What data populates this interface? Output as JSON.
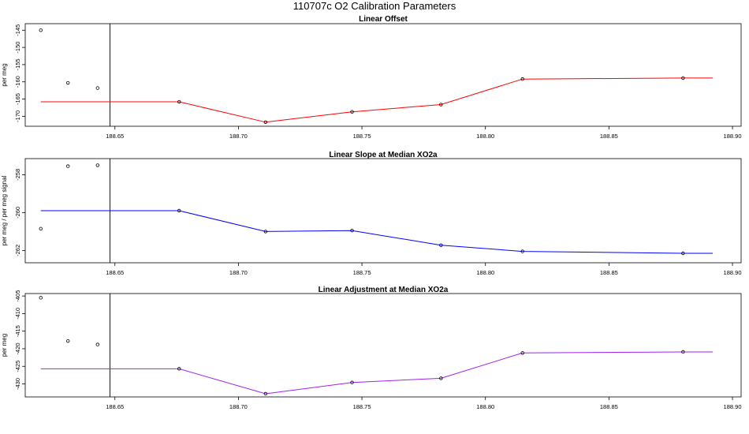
{
  "title": "110707c   O2 Calibration Parameters",
  "chart_data": [
    {
      "type": "line",
      "title": "Linear Offset",
      "ylabel": "per meg",
      "xlim": [
        188.6137,
        188.9035
      ],
      "ylim": [
        -172.9,
        -143.1
      ],
      "xticks": [
        "188.65",
        "188.70",
        "188.75",
        "188.80",
        "188.85",
        "188.90"
      ],
      "yticks": [
        "-145",
        "-150",
        "-155",
        "-160",
        "-165",
        "-170"
      ],
      "vline_x": 188.648,
      "points": {
        "x": [
          188.62,
          188.631,
          188.643
        ],
        "y": [
          -145.0,
          -160.3,
          -161.8
        ]
      },
      "series": [
        {
          "color": "#ff0000",
          "x": [
            188.62,
            188.676,
            188.711,
            188.746,
            188.782,
            188.815,
            188.88,
            188.892
          ],
          "y": [
            -165.8,
            -165.8,
            -171.7,
            -168.7,
            -166.6,
            -159.2,
            -158.9,
            -158.9
          ],
          "markers": [
            false,
            true,
            true,
            true,
            true,
            true,
            true,
            false
          ]
        }
      ]
    },
    {
      "type": "line",
      "title": "Linear Slope at Median XO2a",
      "ylabel": "per meg / per meg signal",
      "xlim": [
        188.6137,
        188.9035
      ],
      "ylim": [
        -262.65,
        -257.15
      ],
      "xticks": [
        "188.65",
        "188.70",
        "188.75",
        "188.80",
        "188.85",
        "188.90"
      ],
      "yticks": [
        "-258",
        "-260",
        "-262"
      ],
      "vline_x": 188.648,
      "points": {
        "x": [
          188.62,
          188.631,
          188.643
        ],
        "y": [
          -260.85,
          -257.55,
          -257.5
        ]
      },
      "series": [
        {
          "color": "#0000ff",
          "x": [
            188.62,
            188.676,
            188.711,
            188.746,
            188.782,
            188.815,
            188.88,
            188.892
          ],
          "y": [
            -259.9,
            -259.9,
            -261.0,
            -260.95,
            -261.72,
            -262.05,
            -262.15,
            -262.15
          ],
          "markers": [
            false,
            true,
            true,
            true,
            true,
            true,
            true,
            false
          ]
        }
      ]
    },
    {
      "type": "line",
      "title": "Linear Adjustment at Median XO2a",
      "ylabel": "per meg",
      "xlim": [
        188.6137,
        188.9035
      ],
      "ylim": [
        -433.7,
        -404.3
      ],
      "xticks": [
        "188.65",
        "188.70",
        "188.75",
        "188.80",
        "188.85",
        "188.90"
      ],
      "yticks": [
        "-405",
        "-410",
        "-415",
        "-420",
        "-425",
        "-430"
      ],
      "vline_x": 188.648,
      "points": {
        "x": [
          188.62,
          188.631,
          188.643
        ],
        "y": [
          -405.5,
          -417.8,
          -418.8
        ]
      },
      "series": [
        {
          "color": "#a020f0",
          "x": [
            188.62,
            188.676,
            188.711,
            188.746,
            188.782,
            188.815,
            188.88,
            188.892
          ],
          "y": [
            -425.7,
            -425.7,
            -432.8,
            -429.6,
            -428.4,
            -421.2,
            -420.9,
            -420.9
          ],
          "markers": [
            false,
            true,
            true,
            true,
            true,
            true,
            true,
            false
          ]
        }
      ]
    }
  ]
}
